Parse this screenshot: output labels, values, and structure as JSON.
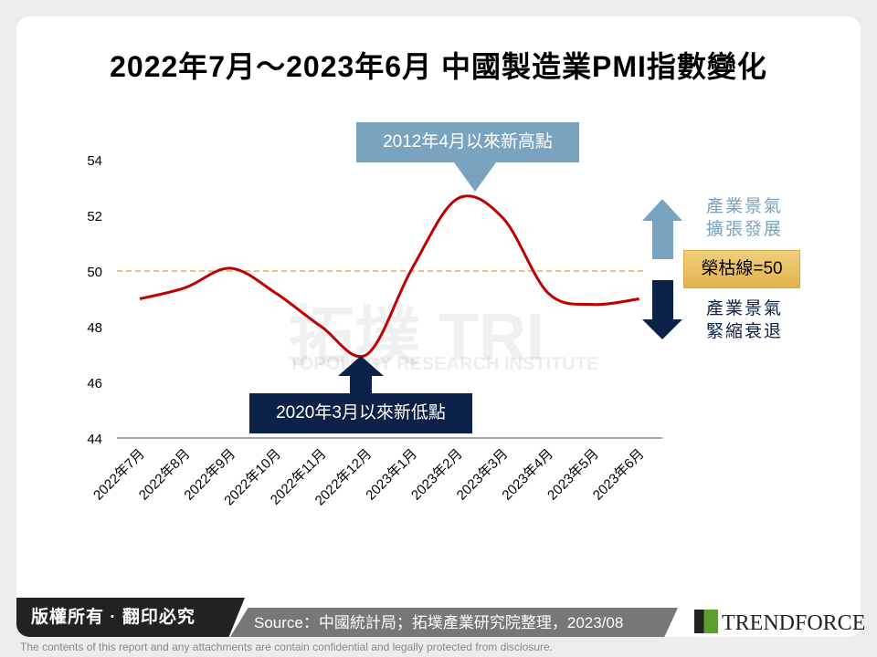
{
  "footer": {
    "copyright": "版權所有 · 翻印必究",
    "source": "Source：中國統計局；拓墣產業研究院整理，2023/08",
    "brand": "TRENDFORCE",
    "disclaimer": "The contents of this report and any attachments are contain confidential and legally protected from disclosure.",
    "watermark": "拓墣 TRI",
    "watermark_sub": "TOPOLOGY RESEARCH INSTITUTE"
  },
  "annotations": {
    "high": "2012年4月以來新高點",
    "low": "2020年3月以來新低點",
    "expand": "產業景氣\n擴張發展",
    "contract": "產業景氣\n緊縮衰退",
    "threshold": "榮枯線=50"
  },
  "colors": {
    "line": "#c00000",
    "threshold": "#e0b050",
    "high_box": "#7aa3c0",
    "low_box": "#0b2147"
  },
  "chart_data": {
    "type": "line",
    "title": "2022年7月～2023年6月 中國製造業PMI指數變化",
    "categories": [
      "2022年7月",
      "2022年8月",
      "2022年9月",
      "2022年10月",
      "2022年11月",
      "2022年12月",
      "2023年1月",
      "2023年2月",
      "2023年3月",
      "2023年4月",
      "2023年5月",
      "2023年6月"
    ],
    "values": [
      49.0,
      49.4,
      50.1,
      49.2,
      48.0,
      47.0,
      50.1,
      52.6,
      51.9,
      49.2,
      48.8,
      49.0
    ],
    "yticks": [
      44,
      46,
      48,
      50,
      52,
      54
    ],
    "ylim": [
      44,
      54
    ],
    "reference_line": 50,
    "grid": false
  }
}
